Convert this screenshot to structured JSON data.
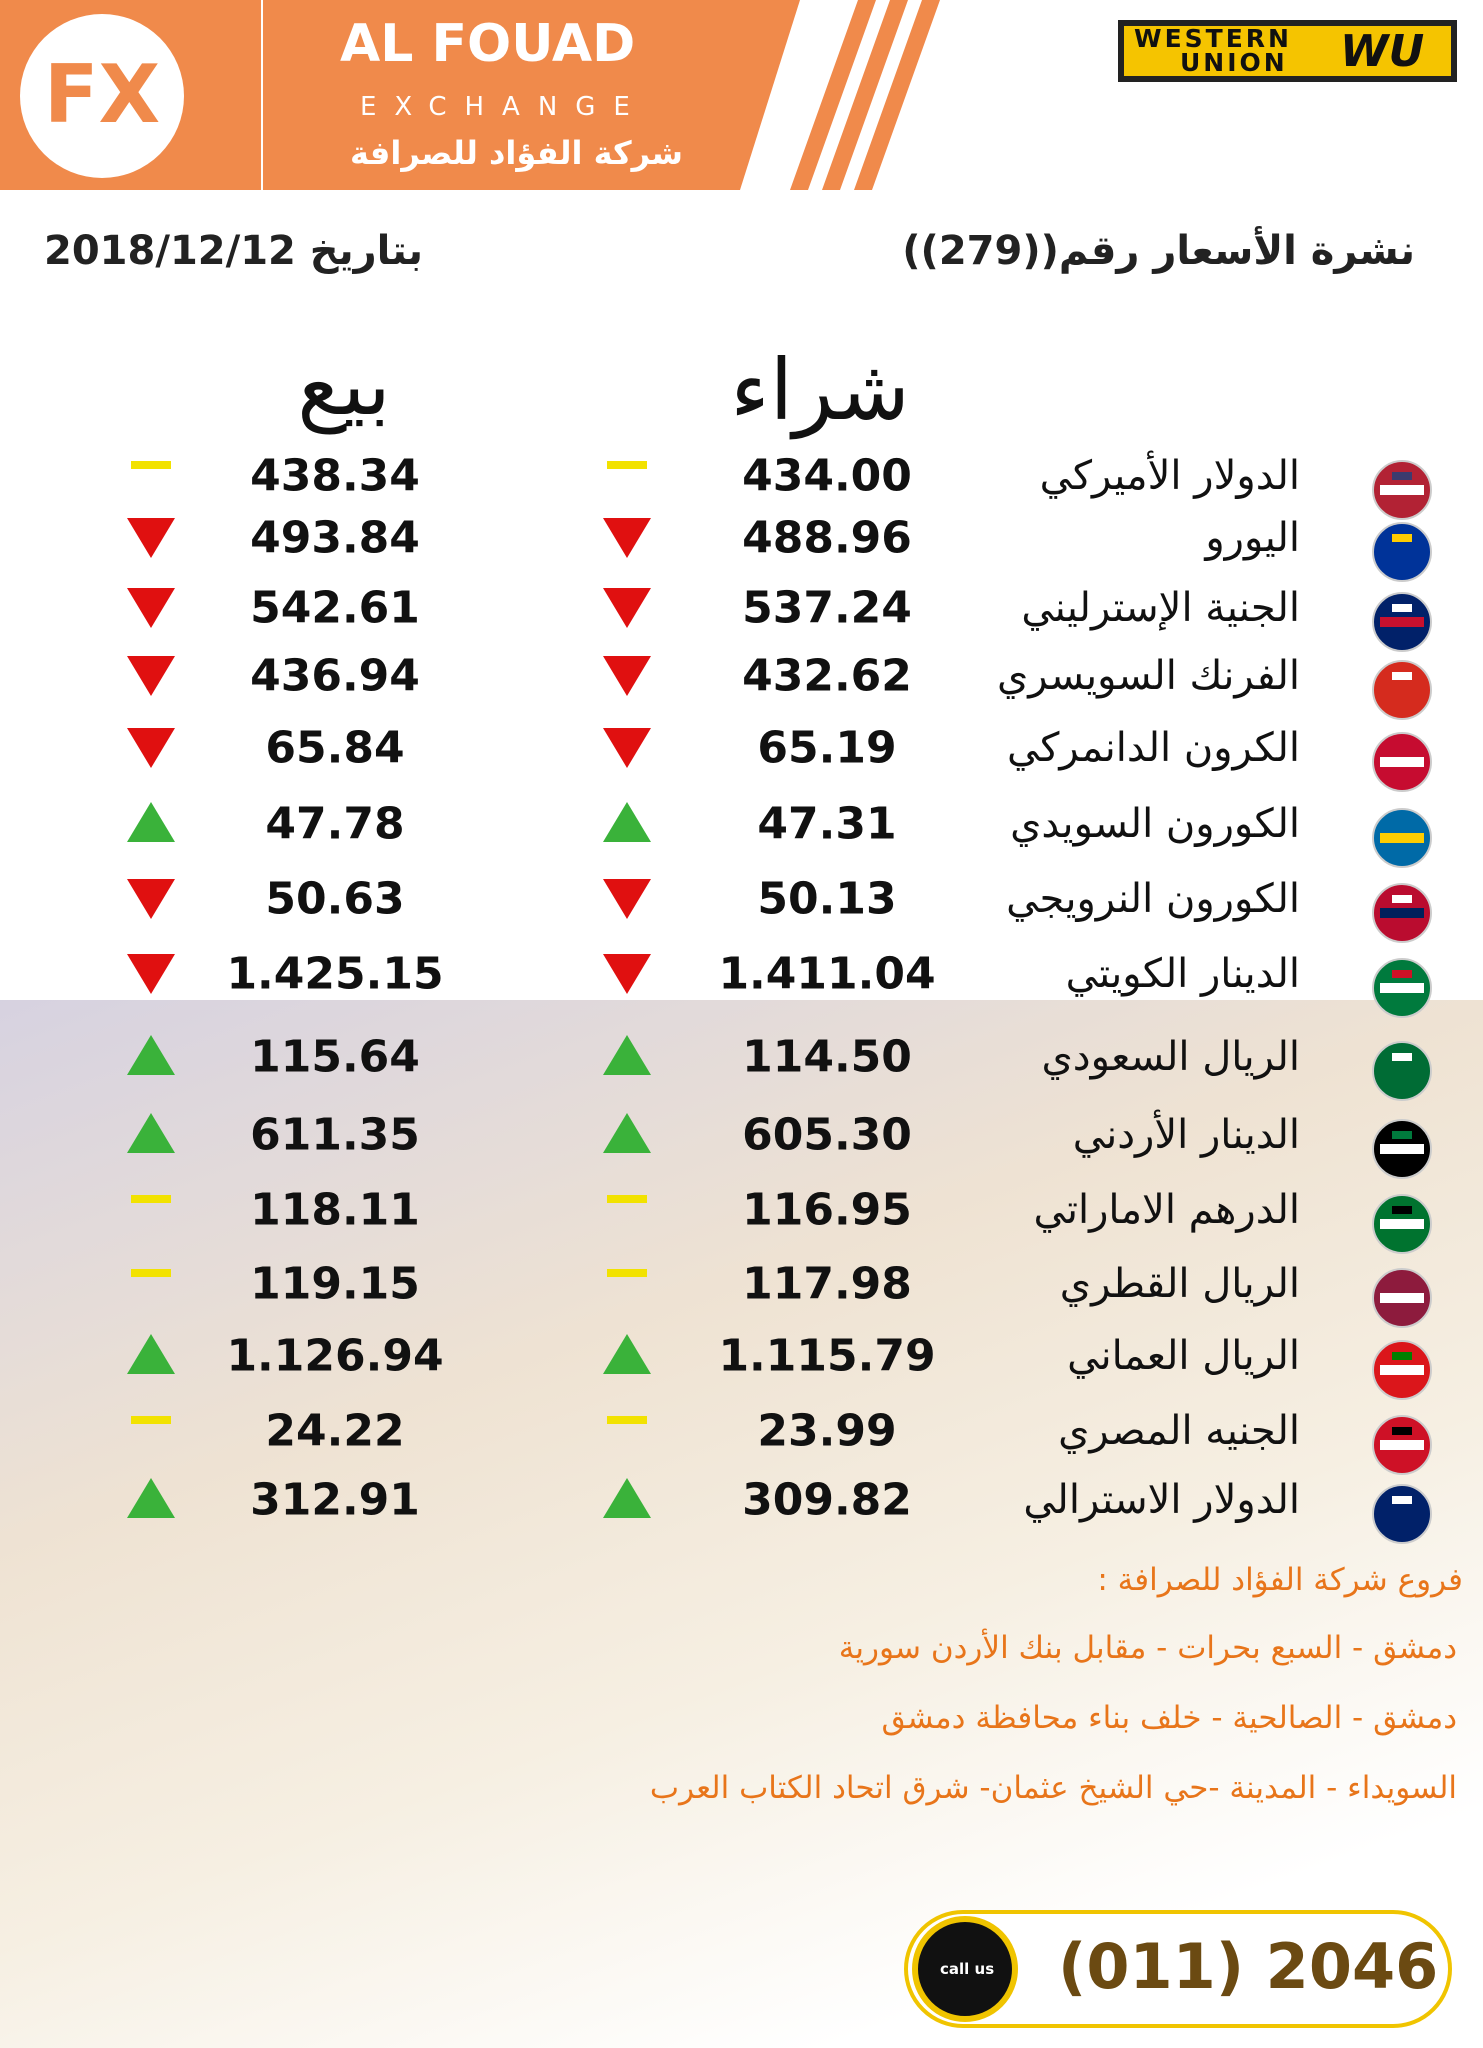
{
  "header": {
    "brand": "AL FOUAD",
    "subtitle": "EXCHANGE",
    "arabic_name": "شركة الفؤاد للصرافة",
    "partner_line1": "WESTERN",
    "partner_line2": "UNION",
    "partner_logo": "WU"
  },
  "bulletin": {
    "title": "نشرة الأسعار رقم((279))",
    "date": "بتاريخ 2018/12/12"
  },
  "table": {
    "columns": {
      "buy": "شراء",
      "sell": "بيع"
    },
    "rows": [
      [
        "الدولار الأميركي",
        "434.00",
        "438.34"
      ],
      [
        "اليورو",
        "488.96",
        "493.84"
      ],
      [
        "الجنية الإسترليني",
        "537.24",
        "542.61"
      ],
      [
        "الفرنك السويسري",
        "432.62",
        "436.94"
      ],
      [
        "الكرون الدانمركي",
        "65.19",
        "65.84"
      ],
      [
        "الكورون السويدي",
        "47.31",
        "47.78"
      ],
      [
        "الكورون النرويجي",
        "50.13",
        "50.63"
      ],
      [
        "الدينار الكويتي",
        "1.411.04",
        "1.425.15"
      ],
      [
        "الريال السعودي",
        "114.50",
        "115.64"
      ],
      [
        "الدينار الأردني",
        "605.30",
        "611.35"
      ],
      [
        "الدرهم الاماراتي",
        "116.95",
        "118.11"
      ],
      [
        "الريال القطري",
        "117.98",
        "119.15"
      ],
      [
        "الريال العماني",
        "1.115.79",
        "1.126.94"
      ],
      [
        "الجنيه المصري",
        "23.99",
        "24.22"
      ],
      [
        "الدولار الاسترالي",
        "309.82",
        "312.91"
      ]
    ]
  },
  "branches": {
    "title": "فروع شركة الفؤاد للصرافة :",
    "lines": [
      "دمشق - السبع بحرات - مقابل بنك الأردن سورية",
      "دمشق - الصالحية - خلف بناء محافظة دمشق",
      "السويداء - المدينة -حي الشيخ عثمان- شرق اتحاد  الكتاب العرب"
    ]
  },
  "contact": {
    "phone": "(011) 2046",
    "call_label": "call us"
  }
}
